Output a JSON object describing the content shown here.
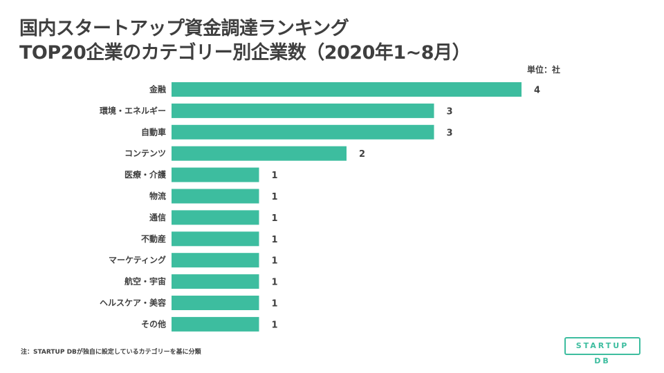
{
  "title_line1": "国内スタートアップ資金調達ランキング",
  "title_line2": "TOP20企業のカテゴリー別企業数（2020年1~8月）",
  "unit": "単位：社",
  "note": "注：STARTUP DBが独自に設定しているカテゴリーを基に分類",
  "logo_text": "STARTUP DB",
  "colors": {
    "bar": "#3dbd9f",
    "text": "#3f3f3f"
  },
  "chart_data": {
    "type": "bar",
    "orientation": "horizontal",
    "categories": [
      "金融",
      "環境・エネルギー",
      "自動車",
      "コンテンツ",
      "医療・介護",
      "物流",
      "通信",
      "不動産",
      "マーケティング",
      "航空・宇宙",
      "ヘルスケア・美容",
      "その他"
    ],
    "values": [
      4,
      3,
      3,
      2,
      1,
      1,
      1,
      1,
      1,
      1,
      1,
      1
    ],
    "xlim": [
      0,
      4
    ],
    "grid": false,
    "legend": false,
    "data_labels": true
  }
}
